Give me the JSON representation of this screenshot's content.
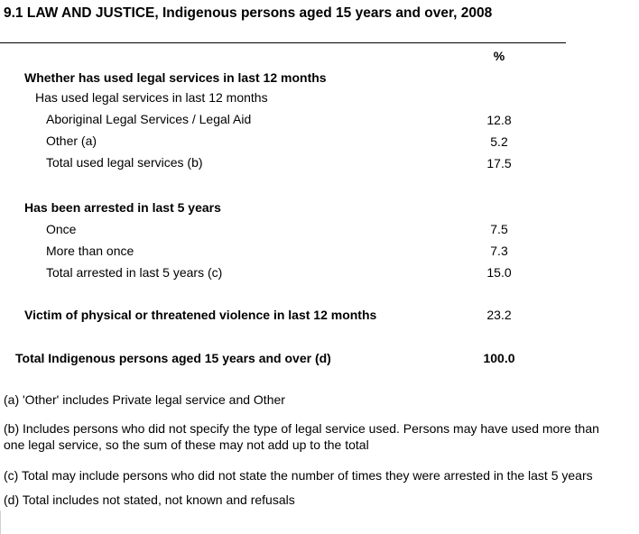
{
  "title": "9.1 LAW AND JUSTICE, Indigenous persons aged 15 years and over, 2008",
  "unit_header": "%",
  "rows": [
    {
      "label": "Whether has used legal services in last 12 months",
      "value": ""
    },
    {
      "label": "Has used legal services in last 12 months",
      "value": ""
    },
    {
      "label": "Aboriginal Legal Services / Legal Aid",
      "value": "12.8"
    },
    {
      "label": "Other (a)",
      "value": "5.2"
    },
    {
      "label": "Total used legal services (b)",
      "value": "17.5"
    },
    {
      "label": "Has been arrested in last 5 years",
      "value": ""
    },
    {
      "label": "Once",
      "value": "7.5"
    },
    {
      "label": "More than once",
      "value": "7.3"
    },
    {
      "label": "Total arrested in last 5 years (c)",
      "value": "15.0"
    },
    {
      "label": "Victim of physical or threatened violence in last 12 months",
      "value": "23.2"
    },
    {
      "label": "Total Indigenous persons aged 15 years and over (d)",
      "value": "100.0"
    }
  ],
  "footnotes": [
    "(a) 'Other' includes Private legal service and Other",
    "(b) Includes persons who did not specify the type of legal service used.  Persons may have used more than",
    "one legal service, so the sum of these may not add up to the total",
    "(c) Total may include persons who did not state the number of times they were arrested in the last 5 years",
    "(d) Total includes not stated, not known and refusals"
  ]
}
